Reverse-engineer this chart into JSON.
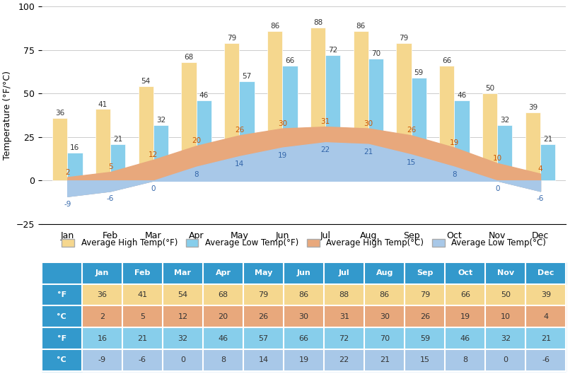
{
  "months": [
    "Jan",
    "Feb",
    "Mar",
    "Apr",
    "May",
    "Jun",
    "Jul",
    "Aug",
    "Sep",
    "Oct",
    "Nov",
    "Dec"
  ],
  "high_f": [
    36,
    41,
    54,
    68,
    79,
    86,
    88,
    86,
    79,
    66,
    50,
    39
  ],
  "high_c": [
    2,
    5,
    12,
    20,
    26,
    30,
    31,
    30,
    26,
    19,
    10,
    4
  ],
  "low_f": [
    16,
    21,
    32,
    46,
    57,
    66,
    72,
    70,
    59,
    46,
    32,
    21
  ],
  "low_c": [
    -9,
    -6,
    0,
    8,
    14,
    19,
    22,
    21,
    15,
    8,
    0,
    -6
  ],
  "bar_high_color": "#F5D78E",
  "bar_low_color": "#87CEEB",
  "fill_high_color": "#E8A87C",
  "fill_low_color": "#A8C8E8",
  "ylabel": "Temperature (°F/°C)",
  "ylim": [
    -25,
    100
  ],
  "yticks": [
    -25,
    0,
    25,
    50,
    75,
    100
  ],
  "legend_labels": [
    "Average High Temp(°F)",
    "Average Low Temp(°F)",
    "Average High Temp(°C)",
    "Average Low Temp(°C)"
  ],
  "table_header_bg": "#3399CC",
  "table_row1_bg": "#F5D78E",
  "table_row2_bg": "#E8A87C",
  "table_row3_bg": "#87CEEB",
  "table_row4_bg": "#A8C8E8",
  "table_header_text": "#FFFFFF",
  "table_text": "#333333",
  "row_labels": [
    "°F",
    "°C",
    "°F",
    "°C"
  ]
}
